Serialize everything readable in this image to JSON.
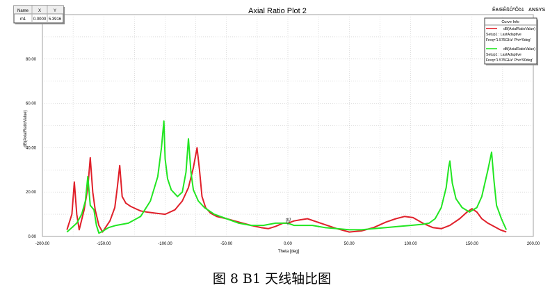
{
  "chart_data": {
    "type": "line",
    "title": "Axial Ratio Plot 2",
    "xlabel": "Theta [deg]",
    "ylabel": "dB(AxialRatioValue)",
    "xlim": [
      -200,
      200
    ],
    "ylim": [
      0,
      100
    ],
    "xticks": [
      "-200.00",
      "-150.00",
      "-100.00",
      "-50.00",
      "0.00",
      "50.00",
      "100.00",
      "150.00",
      "200.00"
    ],
    "yticks": [
      "0.00",
      "20.00",
      "40.00",
      "60.00",
      "80.00"
    ],
    "grid": true,
    "legend_position": "top-right",
    "series": [
      {
        "name": "dB(AxialRatioValue)",
        "legend_detail": [
          "Setup1 : LastAdaptive",
          "Freq='1.575GHz' Phi='0deg'"
        ],
        "color": "#e0202a",
        "x": [
          -180,
          -176,
          -174,
          -172,
          -170,
          -166,
          -163,
          -161,
          -159,
          -157,
          -154,
          -151,
          -148,
          -145,
          -141,
          -139,
          -137,
          -135,
          -132,
          -128,
          -124,
          -120,
          -115,
          -108,
          -100,
          -92,
          -86,
          -81,
          -77,
          -74,
          -72,
          -70,
          -67,
          -63,
          -58,
          -50,
          -40,
          -30,
          -22,
          -16,
          -10,
          -4,
          0,
          5,
          10,
          16,
          24,
          32,
          40,
          50,
          60,
          70,
          80,
          88,
          95,
          102,
          110,
          118,
          125,
          132,
          140,
          146,
          150,
          154,
          158,
          163,
          168,
          173,
          178
        ],
        "y": [
          3,
          10,
          24.5,
          10,
          3,
          12,
          22,
          35.5,
          20,
          12,
          5,
          2,
          4.5,
          7,
          13,
          22,
          32,
          18,
          15,
          13.5,
          12.5,
          11.5,
          11,
          10.5,
          10,
          12,
          16,
          22,
          31,
          40,
          30,
          18,
          13,
          10.5,
          9,
          8,
          6.5,
          5,
          4,
          3.5,
          4.5,
          6,
          6,
          7,
          7.5,
          8,
          6.5,
          5,
          3.5,
          2,
          2.5,
          4,
          6.5,
          8,
          9,
          8.5,
          6,
          4,
          3.5,
          5,
          8,
          11,
          12.5,
          11,
          8,
          6,
          4.5,
          3,
          2
        ]
      },
      {
        "name": "dB(AxialRatioValue)",
        "legend_detail": [
          "Setup1 : LastAdaptive",
          "Freq='1.575GHz' Phi='90deg'"
        ],
        "color": "#22e622",
        "x": [
          -180,
          -176,
          -172,
          -168,
          -165,
          -163,
          -161,
          -158,
          -156,
          -154,
          -152,
          -149,
          -146,
          -140,
          -130,
          -120,
          -112,
          -106,
          -103,
          -101,
          -100,
          -98,
          -95,
          -90,
          -86,
          -83,
          -81,
          -79,
          -77,
          -73,
          -68,
          -60,
          -50,
          -40,
          -30,
          -20,
          -10,
          -5,
          0,
          5,
          10,
          20,
          30,
          40,
          50,
          60,
          70,
          80,
          90,
          100,
          110,
          115,
          120,
          125,
          129,
          131,
          132,
          134,
          137,
          142,
          148,
          154,
          158,
          163,
          166,
          168,
          170,
          174,
          178
        ],
        "y": [
          2,
          4,
          6,
          10,
          16,
          27,
          14,
          12,
          5,
          1.5,
          2,
          3,
          4,
          5,
          6,
          9,
          16,
          27,
          40,
          52,
          35,
          26,
          21,
          18,
          20,
          29,
          44,
          29,
          21,
          16,
          13,
          10,
          8,
          6,
          5,
          5,
          6,
          6,
          6,
          5,
          5,
          5,
          4,
          3.5,
          3,
          3,
          3.5,
          4,
          4.5,
          5,
          5.5,
          6,
          8,
          13,
          22,
          31,
          34,
          24,
          17,
          13,
          11,
          13,
          18,
          30,
          38,
          25,
          14,
          8,
          3
        ]
      }
    ],
    "marker": {
      "name": "m1",
      "x": 0.0,
      "y": 5.3916
    }
  },
  "marker_table": {
    "headers": [
      "Name",
      "X",
      "Y"
    ],
    "rows": [
      [
        "m1",
        "0.0000",
        "5.3916"
      ]
    ]
  },
  "legend": {
    "title": "Curve Info"
  },
  "branding": {
    "garbled_text": "ÊëÆÊßÔºÕò1",
    "company": "ANSYS"
  },
  "caption": "图 8 B1 天线轴比图"
}
